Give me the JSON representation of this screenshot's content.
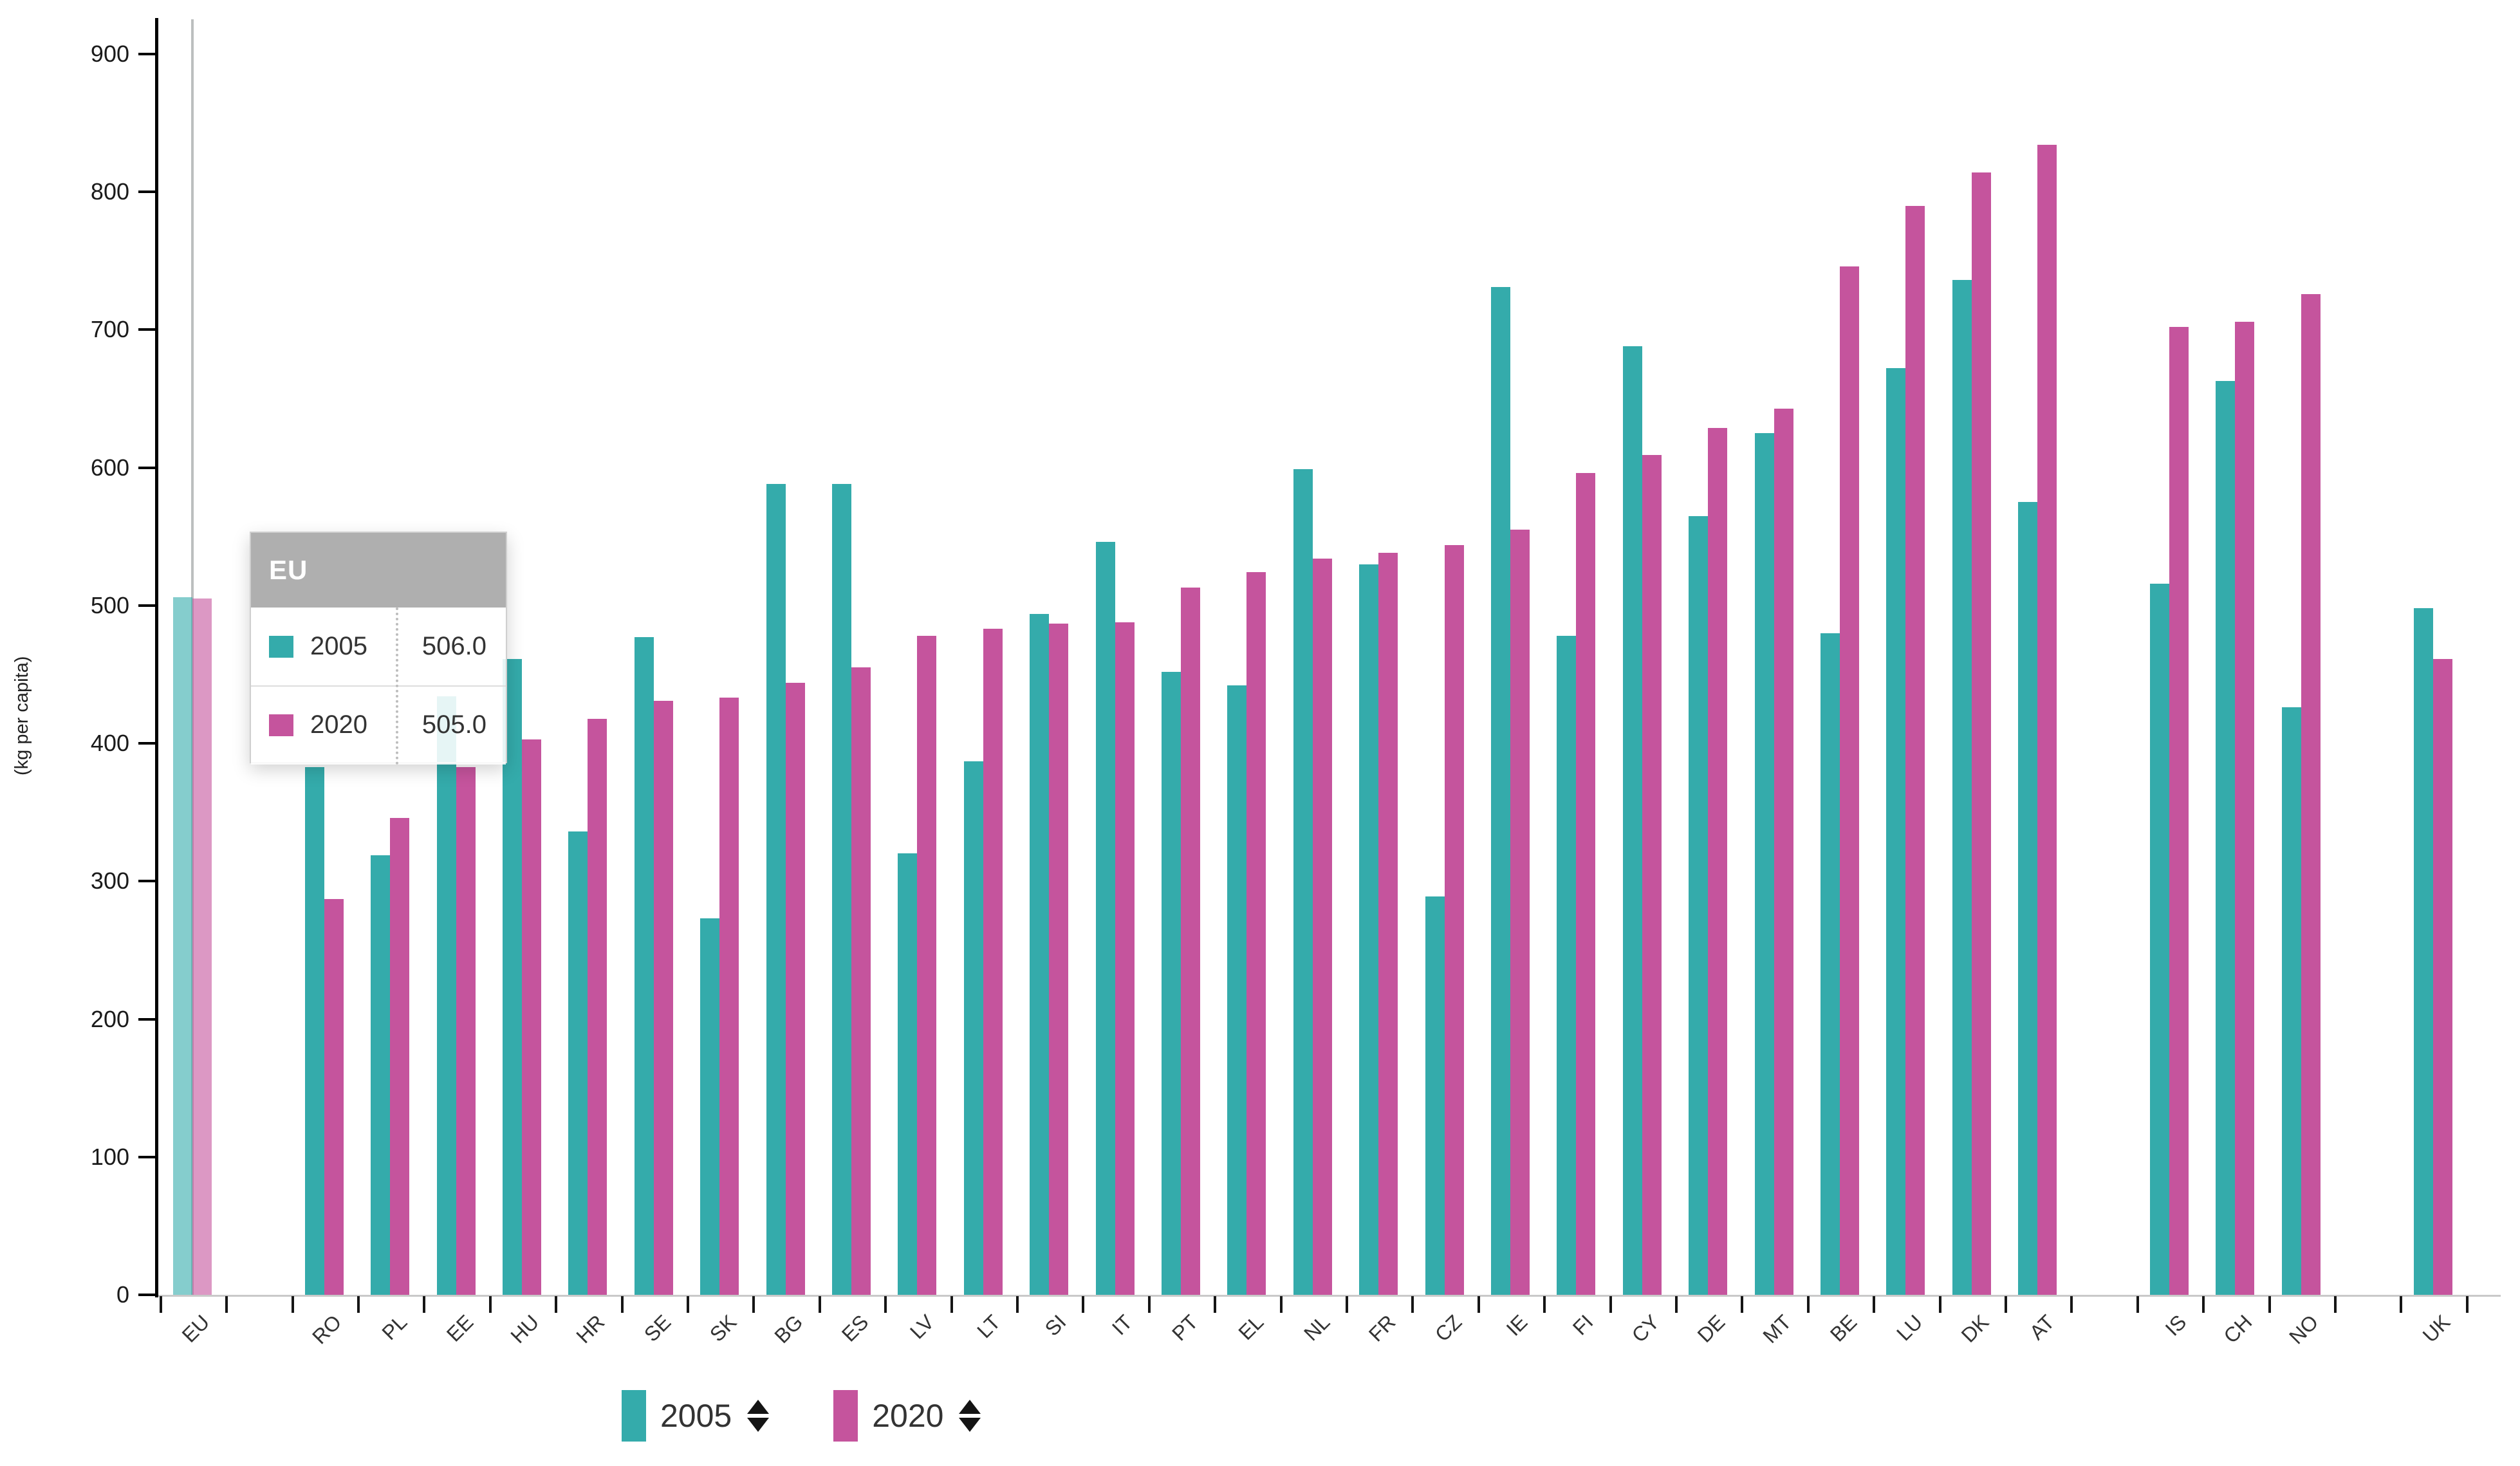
{
  "chart_data": {
    "type": "bar",
    "title": "",
    "ylabel": "(kg per capita)",
    "unit": "kg per capita",
    "ylim": [
      0,
      900
    ],
    "yticks": [
      0,
      100,
      200,
      300,
      400,
      500,
      600,
      700,
      800,
      900
    ],
    "grid": false,
    "legend_position": "bottom",
    "sorted_by": "2020 ascending",
    "categories": [
      "EU",
      "RO",
      "PL",
      "EE",
      "HU",
      "HR",
      "SE",
      "SK",
      "BG",
      "ES",
      "LV",
      "LT",
      "SI",
      "IT",
      "PT",
      "EL",
      "NL",
      "FR",
      "CZ",
      "IE",
      "FI",
      "CY",
      "DE",
      "MT",
      "BE",
      "LU",
      "DK",
      "AT",
      "IS",
      "CH",
      "NO",
      "UK"
    ],
    "gaps_after": [
      "EU",
      "AT",
      "NO"
    ],
    "highlighted_category": "EU",
    "series": [
      {
        "name": "2005",
        "color": "#34abab",
        "values": [
          506,
          383,
          319,
          434,
          461,
          336,
          477,
          273,
          588,
          588,
          320,
          387,
          494,
          546,
          452,
          442,
          599,
          530,
          289,
          731,
          478,
          688,
          565,
          625,
          480,
          672,
          736,
          575,
          516,
          663,
          426,
          498
        ]
      },
      {
        "name": "2020",
        "color": "#c5549d",
        "values": [
          505,
          287,
          346,
          383,
          403,
          418,
          431,
          433,
          444,
          455,
          478,
          483,
          487,
          488,
          513,
          524,
          534,
          538,
          544,
          555,
          596,
          609,
          629,
          643,
          746,
          790,
          814,
          834,
          702,
          706,
          726,
          461
        ]
      }
    ]
  },
  "tooltip": {
    "title": "EU",
    "rows": [
      {
        "swatch": "#34abab",
        "label": "2005",
        "value": "506.0"
      },
      {
        "swatch": "#c5549d",
        "label": "2020",
        "value": "505.0"
      }
    ]
  },
  "legend": {
    "items": [
      {
        "label": "2005",
        "color": "#34abab",
        "sort_icon": "up-down-arrows"
      },
      {
        "label": "2020",
        "color": "#c5549d",
        "sort_icon": "up-down-arrows"
      }
    ]
  },
  "colors": {
    "series_2005": "#34abab",
    "series_2020": "#c5549d",
    "axis": "#000000",
    "baseline": "#c9c9c9",
    "crosshair": "#bcbfbf",
    "tooltip_header_bg": "#acacac",
    "text": "#333333"
  }
}
